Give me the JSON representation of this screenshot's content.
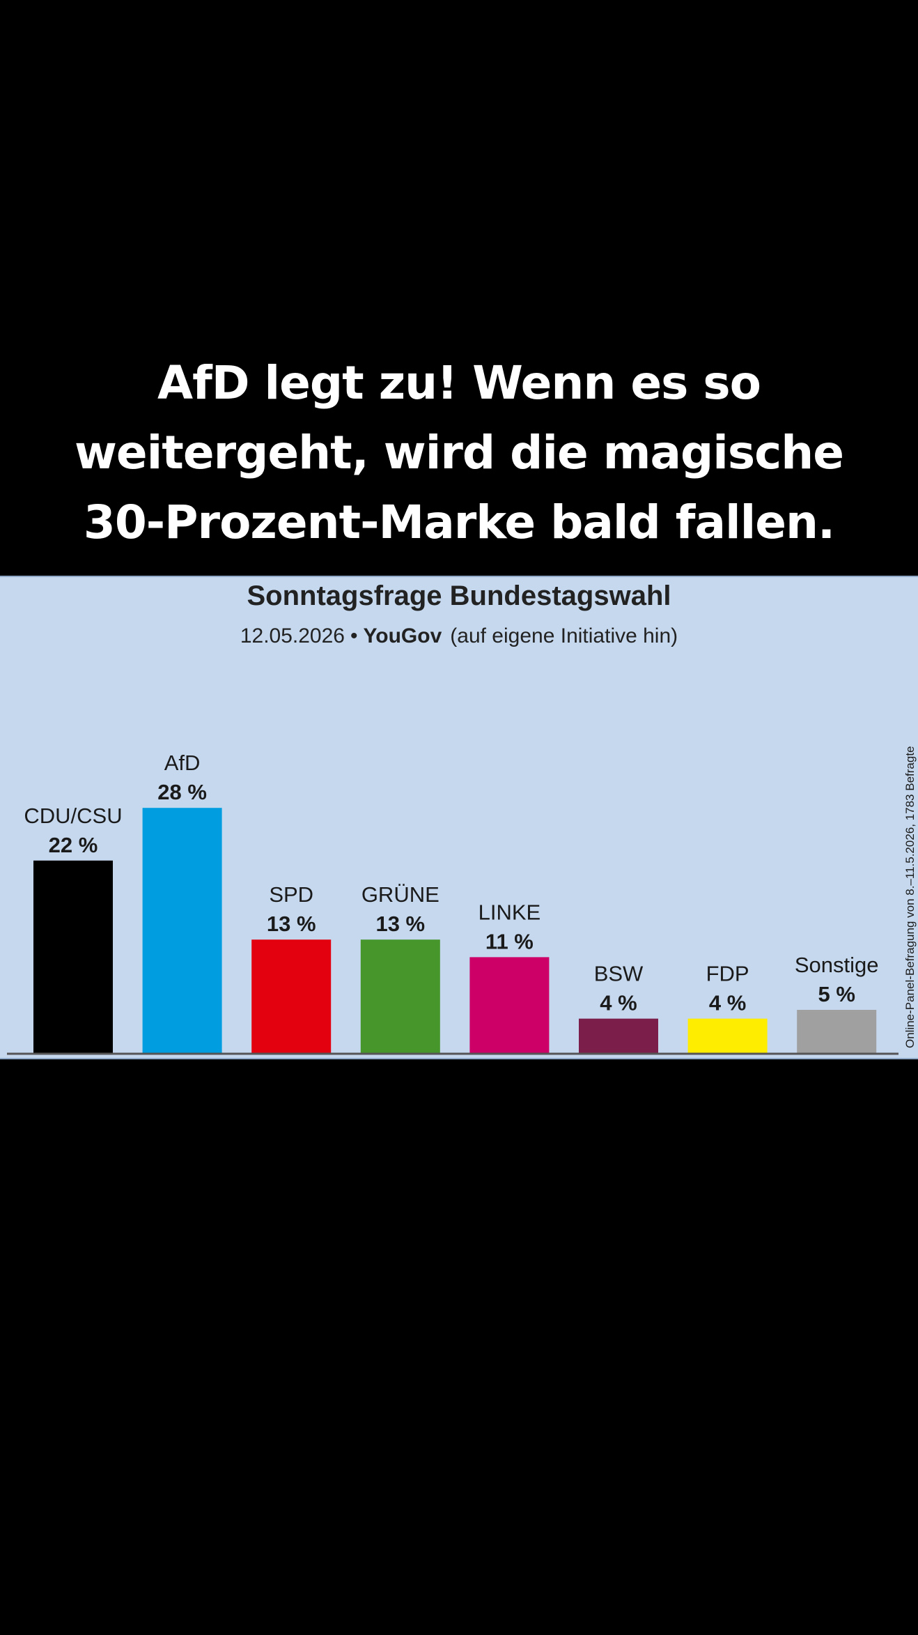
{
  "caption": {
    "lines": [
      "AfD legt zu! Wenn es so",
      "weitergeht, wird die magische",
      "30-Prozent-Marke bald fallen."
    ]
  },
  "chart_data": {
    "type": "bar",
    "title": "Sonntagsfrage Bundestagswahl",
    "subtitle": {
      "date": "12.05.2026",
      "separator": "•",
      "source": "YouGov",
      "note": "(auf eigene Initiative hin)"
    },
    "side_note": "Online-Panel-Befragung von 8.–11.5.2026, 1783 Befragte",
    "categories": [
      "CDU/CSU",
      "AfD",
      "SPD",
      "GRÜNE",
      "LINKE",
      "BSW",
      "FDP",
      "Sonstige"
    ],
    "values": [
      22,
      28,
      13,
      13,
      11,
      4,
      4,
      5
    ],
    "value_labels": [
      "22 %",
      "28 %",
      "13 %",
      "13 %",
      "11 %",
      "4 %",
      "4 %",
      "5 %"
    ],
    "colors": [
      "#000000",
      "#009ee0",
      "#e3000f",
      "#46962b",
      "#cc0066",
      "#7b1e49",
      "#ffed00",
      "#a0a0a0"
    ],
    "ylim": [
      0,
      30
    ],
    "grid": false,
    "legend": "none"
  }
}
